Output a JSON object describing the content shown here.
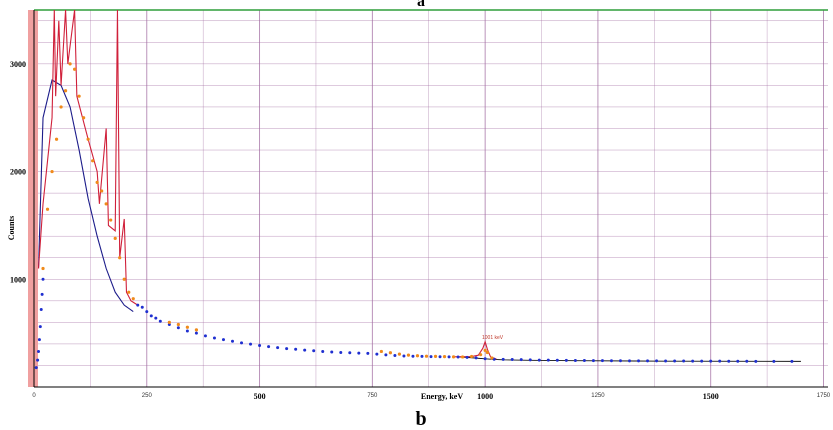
{
  "panel_labels": {
    "top": "a",
    "bottom": "b"
  },
  "peak_annotation": "1001 keV",
  "colors": {
    "grid": "#a06aa0",
    "measured_points": "#1f2fd0",
    "fitted_points": "#f08a1a",
    "fit_curve": "#d0203a",
    "background_curve": "#1c1c8a",
    "left_band": "#f0a0a0",
    "top_border": "#2e9e3a"
  },
  "chart_data": {
    "type": "scatter",
    "xlabel": "Energy, keV",
    "ylabel": "Counts",
    "xlim": [
      0,
      1760
    ],
    "ylim_display": [
      0,
      3500
    ],
    "x_ticks_small": [
      {
        "value": 0,
        "label": "0"
      },
      {
        "value": 250,
        "label": "250"
      },
      {
        "value": 750,
        "label": "750"
      },
      {
        "value": 1250,
        "label": "1250"
      },
      {
        "value": 1750,
        "label": "1750"
      }
    ],
    "x_ticks_big": [
      {
        "value": 500,
        "label": "500"
      },
      {
        "value": 1000,
        "label": "1000"
      },
      {
        "value": 1500,
        "label": "1500"
      }
    ],
    "y_ticks": [
      {
        "value": 1000,
        "label": "1000"
      },
      {
        "value": 2000,
        "label": "2000"
      },
      {
        "value": 3000,
        "label": "3000"
      }
    ],
    "series": [
      {
        "kind": "measured",
        "points": [
          [
            5,
            180
          ],
          [
            8,
            250
          ],
          [
            10,
            330
          ],
          [
            12,
            440
          ],
          [
            14,
            560
          ],
          [
            16,
            720
          ],
          [
            18,
            860
          ],
          [
            20,
            1000
          ],
          [
            230,
            760
          ],
          [
            240,
            740
          ],
          [
            250,
            700
          ],
          [
            260,
            660
          ],
          [
            270,
            640
          ],
          [
            280,
            610
          ],
          [
            300,
            580
          ],
          [
            320,
            550
          ],
          [
            340,
            520
          ],
          [
            360,
            500
          ],
          [
            380,
            475
          ],
          [
            400,
            455
          ],
          [
            420,
            440
          ],
          [
            440,
            425
          ],
          [
            460,
            410
          ],
          [
            480,
            398
          ],
          [
            500,
            385
          ],
          [
            520,
            375
          ],
          [
            540,
            365
          ],
          [
            560,
            356
          ],
          [
            580,
            350
          ],
          [
            600,
            342
          ],
          [
            620,
            336
          ],
          [
            640,
            330
          ],
          [
            660,
            325
          ],
          [
            680,
            320
          ],
          [
            700,
            318
          ],
          [
            720,
            315
          ],
          [
            740,
            312
          ],
          [
            760,
            305
          ],
          [
            780,
            298
          ],
          [
            800,
            292
          ],
          [
            820,
            288
          ],
          [
            840,
            286
          ],
          [
            860,
            284
          ],
          [
            880,
            282
          ],
          [
            900,
            281
          ],
          [
            920,
            280
          ],
          [
            940,
            278
          ],
          [
            960,
            275
          ],
          [
            980,
            270
          ],
          [
            1000,
            262
          ],
          [
            1020,
            258
          ],
          [
            1040,
            256
          ],
          [
            1060,
            255
          ],
          [
            1080,
            254
          ],
          [
            1100,
            252
          ],
          [
            1120,
            250
          ],
          [
            1140,
            249
          ],
          [
            1160,
            248
          ],
          [
            1180,
            247
          ],
          [
            1200,
            246
          ],
          [
            1220,
            246
          ],
          [
            1240,
            245
          ],
          [
            1260,
            245
          ],
          [
            1280,
            244
          ],
          [
            1300,
            244
          ],
          [
            1320,
            243
          ],
          [
            1340,
            243
          ],
          [
            1360,
            242
          ],
          [
            1380,
            242
          ],
          [
            1400,
            241
          ],
          [
            1420,
            241
          ],
          [
            1440,
            241
          ],
          [
            1460,
            240
          ],
          [
            1480,
            240
          ],
          [
            1500,
            240
          ],
          [
            1520,
            240
          ],
          [
            1540,
            239
          ],
          [
            1560,
            239
          ],
          [
            1580,
            239
          ],
          [
            1600,
            238
          ],
          [
            1640,
            238
          ],
          [
            1680,
            238
          ]
        ]
      },
      {
        "kind": "fitted_region_1",
        "points": [
          [
            20,
            1100
          ],
          [
            30,
            1650
          ],
          [
            40,
            2000
          ],
          [
            50,
            2300
          ],
          [
            60,
            2600
          ],
          [
            70,
            2750
          ],
          [
            80,
            3000
          ],
          [
            90,
            2950
          ],
          [
            100,
            2700
          ],
          [
            110,
            2500
          ],
          [
            120,
            2300
          ],
          [
            130,
            2100
          ],
          [
            140,
            1900
          ],
          [
            150,
            1820
          ],
          [
            160,
            1700
          ],
          [
            170,
            1550
          ],
          [
            180,
            1380
          ],
          [
            190,
            1200
          ],
          [
            200,
            1000
          ],
          [
            210,
            880
          ],
          [
            220,
            820
          ]
        ]
      },
      {
        "kind": "fitted_region_2",
        "points": [
          [
            300,
            600
          ],
          [
            320,
            580
          ],
          [
            340,
            555
          ],
          [
            360,
            530
          ]
        ]
      },
      {
        "kind": "fitted_region_3",
        "points": [
          [
            770,
            330
          ],
          [
            790,
            318
          ],
          [
            810,
            305
          ],
          [
            830,
            296
          ],
          [
            850,
            290
          ],
          [
            870,
            286
          ],
          [
            890,
            284
          ],
          [
            910,
            282
          ],
          [
            930,
            280
          ],
          [
            950,
            279
          ],
          [
            970,
            283
          ],
          [
            990,
            300
          ],
          [
            1000,
            340
          ],
          [
            1005,
            320
          ],
          [
            1015,
            270
          ]
        ]
      }
    ],
    "fit_curve_peaks": [
      {
        "x": 45,
        "counts": 3500
      },
      {
        "x": 55,
        "counts": 3400
      },
      {
        "x": 70,
        "counts": 3500
      },
      {
        "x": 90,
        "counts": 3500
      },
      {
        "x": 140,
        "counts": 2000
      },
      {
        "x": 160,
        "counts": 2400
      },
      {
        "x": 185,
        "counts": 3500
      },
      {
        "x": 200,
        "counts": 1560
      },
      {
        "x": 1000,
        "counts": 420
      }
    ]
  }
}
